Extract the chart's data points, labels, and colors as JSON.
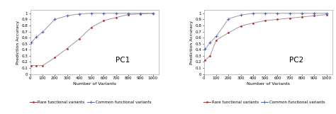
{
  "pc1": {
    "x": [
      10,
      50,
      100,
      200,
      300,
      400,
      500,
      600,
      700,
      800,
      900,
      1000
    ],
    "rare": [
      0.14,
      0.14,
      0.14,
      0.27,
      0.42,
      0.58,
      0.77,
      0.88,
      0.93,
      0.98,
      0.99,
      1.0
    ],
    "common": [
      0.52,
      0.61,
      0.69,
      0.9,
      0.96,
      0.99,
      1.0,
      1.0,
      1.0,
      1.0,
      1.0,
      1.0
    ],
    "label": "PC1"
  },
  "pc2": {
    "x": [
      10,
      50,
      100,
      200,
      300,
      400,
      500,
      600,
      700,
      800,
      900,
      1000
    ],
    "rare": [
      0.23,
      0.3,
      0.56,
      0.68,
      0.79,
      0.84,
      0.88,
      0.9,
      0.92,
      0.94,
      0.96,
      0.98
    ],
    "common": [
      0.41,
      0.52,
      0.62,
      0.91,
      0.97,
      1.0,
      1.0,
      1.0,
      1.0,
      1.0,
      1.0,
      1.0
    ],
    "label": "PC2"
  },
  "rare_color": "#cc2222",
  "common_color": "#4466cc",
  "ylabel": "Prediction Accuracy",
  "xlabel": "Number of Variants",
  "ylim": [
    0,
    1.05
  ],
  "xlim": [
    0,
    1050
  ],
  "yticks": [
    0,
    0.1,
    0.2,
    0.3,
    0.4,
    0.5,
    0.6,
    0.7,
    0.8,
    0.9,
    1.0
  ],
  "ytick_labels": [
    "0",
    "0.1",
    "0.2",
    "0.3",
    "0.4",
    "0.5",
    "0.6",
    "0.7",
    "0.8",
    "0.9",
    "1"
  ],
  "xticks": [
    0,
    100,
    200,
    300,
    400,
    500,
    600,
    700,
    800,
    900,
    1000
  ],
  "legend_rare": "Rare functional variants",
  "legend_common": "Common functional variants",
  "label_fontsize": 4.5,
  "tick_fontsize": 4.0,
  "legend_fontsize": 4.0,
  "pc_fontsize": 7.5,
  "background_color": "#ffffff"
}
